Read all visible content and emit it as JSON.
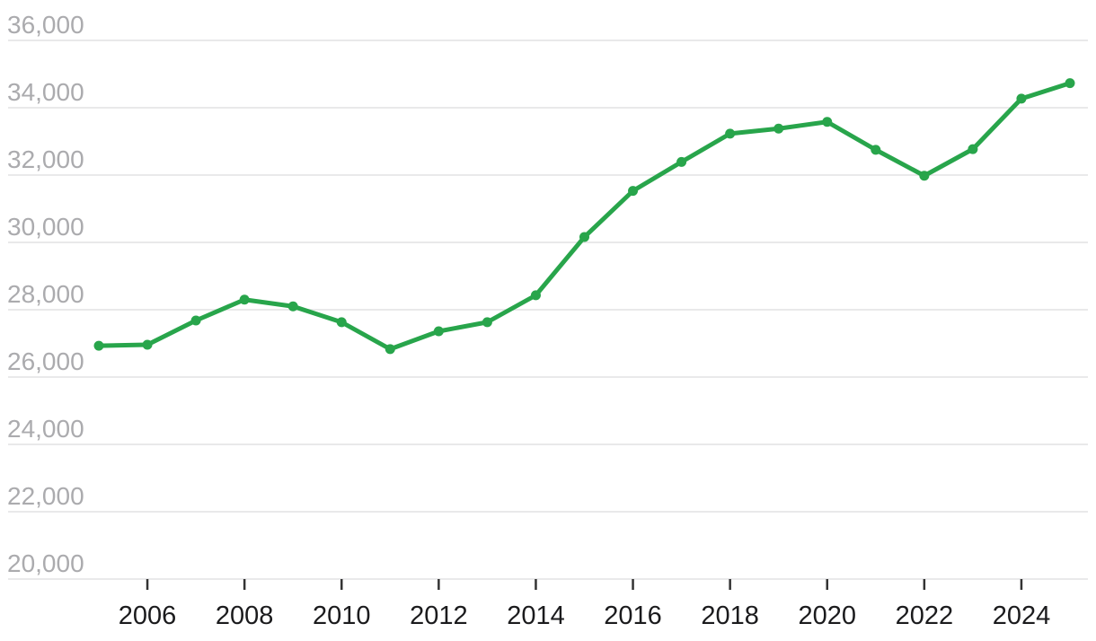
{
  "chart_data": {
    "type": "line",
    "title": "",
    "x": [
      2005,
      2006,
      2007,
      2008,
      2009,
      2010,
      2011,
      2012,
      2013,
      2014,
      2015,
      2016,
      2017,
      2018,
      2019,
      2020,
      2021,
      2022,
      2023,
      2024,
      2025
    ],
    "series": [
      {
        "name": "value",
        "values": [
          26930,
          26960,
          27680,
          28300,
          28100,
          27630,
          26830,
          27360,
          27630,
          28430,
          30160,
          31530,
          32390,
          33230,
          33380,
          33580,
          32750,
          31980,
          32770,
          34270,
          34730
        ]
      }
    ],
    "xlabel": "",
    "ylabel": "",
    "xlim": [
      2005,
      2025
    ],
    "ylim": [
      20000,
      36000
    ],
    "ytick_values": [
      36000,
      34000,
      32000,
      30000,
      28000,
      26000,
      24000,
      22000,
      20000
    ],
    "ytick_labels": [
      "36,000",
      "34,000",
      "32,000",
      "30,000",
      "28,000",
      "26,000",
      "24,000",
      "22,000",
      "20,000"
    ],
    "xtick_values": [
      2006,
      2008,
      2010,
      2012,
      2014,
      2016,
      2018,
      2020,
      2022,
      2024
    ],
    "xtick_labels": [
      "2006",
      "2008",
      "2010",
      "2012",
      "2014",
      "2016",
      "2018",
      "2020",
      "2022",
      "2024"
    ],
    "grid": "horizontal",
    "legend": "none",
    "marker": "circle"
  },
  "colors": {
    "line": "#28a54b",
    "marker": "#28a54b",
    "gridline": "#e9e9ea",
    "y_label": "#ababae",
    "x_label": "#1b1b1d",
    "tick": "#333333",
    "background": "#ffffff"
  }
}
